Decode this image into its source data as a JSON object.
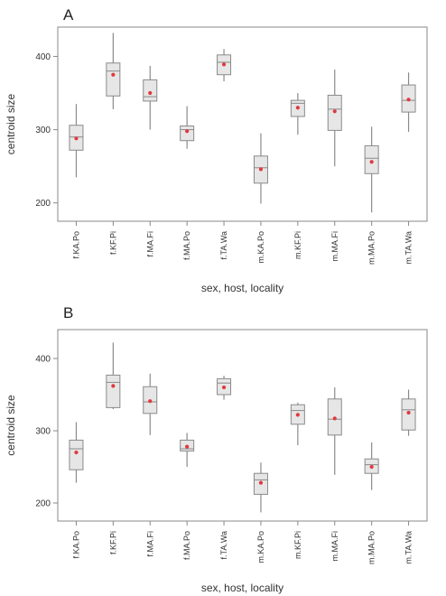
{
  "chart_data": [
    {
      "panel": "A",
      "type": "boxplot",
      "xlabel": "sex, host, locality",
      "ylabel": "centroid size",
      "ylim": [
        175,
        440
      ],
      "yticks": [
        200,
        300,
        400
      ],
      "categories": [
        "f.KA.Po",
        "f.KF.Pi",
        "f.MA.Fi",
        "f.MA.Po",
        "f.TA.Wa",
        "m.KA.Po",
        "m.KF.Pi",
        "m.MA.Fi",
        "m.MA.Po",
        "m.TA.Wa"
      ],
      "boxes": [
        {
          "min": 235,
          "q1": 272,
          "median": 290,
          "q3": 306,
          "max": 335,
          "mean": 288
        },
        {
          "min": 328,
          "q1": 346,
          "median": 380,
          "q3": 391,
          "max": 432,
          "mean": 375
        },
        {
          "min": 300,
          "q1": 339,
          "median": 345,
          "q3": 368,
          "max": 387,
          "mean": 350
        },
        {
          "min": 274,
          "q1": 285,
          "median": 300,
          "q3": 305,
          "max": 332,
          "mean": 298
        },
        {
          "min": 366,
          "q1": 375,
          "median": 392,
          "q3": 402,
          "max": 410,
          "mean": 389
        },
        {
          "min": 199,
          "q1": 227,
          "median": 248,
          "q3": 264,
          "max": 295,
          "mean": 246
        },
        {
          "min": 293,
          "q1": 318,
          "median": 336,
          "q3": 340,
          "max": 350,
          "mean": 330
        },
        {
          "min": 250,
          "q1": 299,
          "median": 328,
          "q3": 347,
          "max": 382,
          "mean": 325
        },
        {
          "min": 187,
          "q1": 240,
          "median": 261,
          "q3": 278,
          "max": 304,
          "mean": 256
        },
        {
          "min": 297,
          "q1": 324,
          "median": 340,
          "q3": 361,
          "max": 378,
          "mean": 341
        }
      ]
    },
    {
      "panel": "B",
      "type": "boxplot",
      "xlabel": "sex, host, locality",
      "ylabel": "centroid size",
      "ylim": [
        175,
        440
      ],
      "yticks": [
        200,
        300,
        400
      ],
      "categories": [
        "f.KA.Po",
        "f.KF.Pi",
        "f.MA.Fi",
        "f.MA.Po",
        "f.TA.Wa",
        "m.KA.Po",
        "m.KF.Pi",
        "m.MA.Fi",
        "m.MA.Po",
        "m.TA.Wa"
      ],
      "boxes": [
        {
          "min": 228,
          "q1": 246,
          "median": 275,
          "q3": 287,
          "max": 312,
          "mean": 270
        },
        {
          "min": 330,
          "q1": 332,
          "median": 367,
          "q3": 377,
          "max": 422,
          "mean": 362
        },
        {
          "min": 294,
          "q1": 324,
          "median": 340,
          "q3": 361,
          "max": 379,
          "mean": 341
        },
        {
          "min": 250,
          "q1": 272,
          "median": 275,
          "q3": 287,
          "max": 297,
          "mean": 278
        },
        {
          "min": 343,
          "q1": 350,
          "median": 366,
          "q3": 372,
          "max": 376,
          "mean": 360
        },
        {
          "min": 187,
          "q1": 212,
          "median": 232,
          "q3": 241,
          "max": 256,
          "mean": 228
        },
        {
          "min": 280,
          "q1": 309,
          "median": 328,
          "q3": 336,
          "max": 339,
          "mean": 322
        },
        {
          "min": 239,
          "q1": 294,
          "median": 316,
          "q3": 344,
          "max": 360,
          "mean": 317
        },
        {
          "min": 218,
          "q1": 241,
          "median": 253,
          "q3": 261,
          "max": 284,
          "mean": 250
        },
        {
          "min": 293,
          "q1": 301,
          "median": 329,
          "q3": 344,
          "max": 357,
          "mean": 325
        }
      ]
    }
  ],
  "colors": {
    "box_fill": "#e6e6e6",
    "box_stroke": "#8a8a8a",
    "frame": "#888888",
    "mean_dot": "#e0393e",
    "whisker": "#8a8a8a"
  }
}
